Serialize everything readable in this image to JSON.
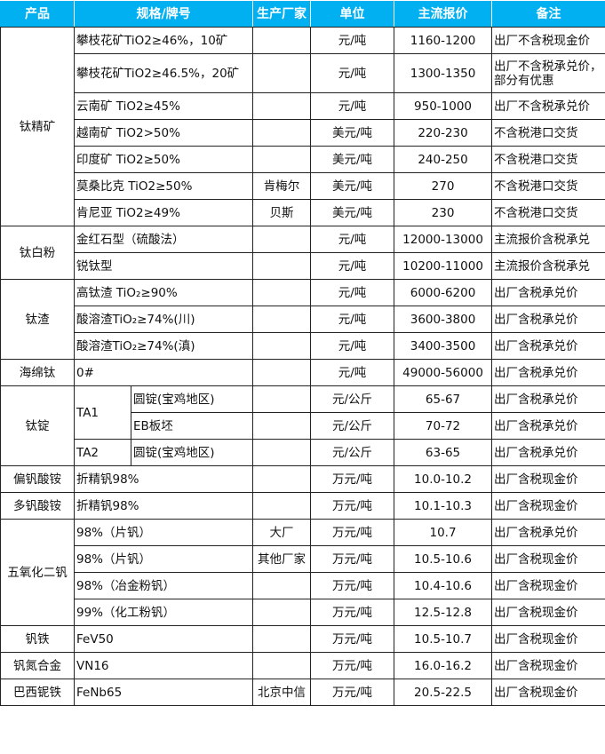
{
  "header": {
    "product": "产品",
    "spec": "规格/牌号",
    "maker": "生产厂家",
    "unit": "单位",
    "price": "主流报价",
    "note": "备注"
  },
  "colors": {
    "header_bg": "#00b0f0",
    "header_text": "#ffffff"
  },
  "groups": [
    {
      "product": "钛精矿",
      "rows": [
        {
          "spec": "攀枝花矿TiO2≥46%，10矿",
          "maker": "",
          "unit": "元/吨",
          "price": "1160-1200",
          "note": "出厂不含税现金价"
        },
        {
          "spec": "攀枝花矿TiO2≥46.5%，20矿",
          "maker": "",
          "unit": "元/吨",
          "price": "1300-1350",
          "note": "出厂不含税承兑价，部分有优惠"
        },
        {
          "spec": "云南矿 TiO2≥45%",
          "maker": "",
          "unit": "元/吨",
          "price": "950-1000",
          "note": "出厂不含税承兑价"
        },
        {
          "spec": "越南矿 TiO2>50%",
          "maker": "",
          "unit": "美元/吨",
          "price": "220-230",
          "note": "不含税港口交货"
        },
        {
          "spec": "印度矿 TiO2≥50%",
          "maker": "",
          "unit": "美元/吨",
          "price": "240-250",
          "note": "不含税港口交货"
        },
        {
          "spec": "莫桑比克 TiO2≥50%",
          "maker": "肯梅尔",
          "unit": "美元/吨",
          "price": "270",
          "note": "不含税港口交货"
        },
        {
          "spec": "肯尼亚 TiO2≥49%",
          "maker": "贝斯",
          "unit": "美元/吨",
          "price": "230",
          "note": "不含税港口交货"
        }
      ]
    },
    {
      "product": "钛白粉",
      "rows": [
        {
          "spec": "金红石型（硫酸法）",
          "maker": "",
          "unit": "元/吨",
          "price": "12000-13000",
          "note": "主流报价含税承兑"
        },
        {
          "spec": "锐钛型",
          "maker": "",
          "unit": "元/吨",
          "price": "10200-11000",
          "note": "主流报价含税承兑"
        }
      ]
    },
    {
      "product": "钛渣",
      "rows": [
        {
          "spec": "高钛渣 TiO₂≥90%",
          "maker": "",
          "unit": "元/吨",
          "price": "6000-6200",
          "note": "出厂含税承兑价"
        },
        {
          "spec": "酸溶渣TiO₂≥74%(川)",
          "maker": "",
          "unit": "元/吨",
          "price": "3600-3800",
          "note": "出厂含税承兑价"
        },
        {
          "spec": "酸溶渣TiO₂≥74%(滇)",
          "maker": "",
          "unit": "元/吨",
          "price": "3400-3500",
          "note": "出厂含税承兑价"
        }
      ]
    },
    {
      "product": "海绵钛",
      "rows": [
        {
          "spec": "0#",
          "maker": "",
          "unit": "元/吨",
          "price": "49000-56000",
          "note": "出厂含税承兑价"
        }
      ]
    },
    {
      "product": "钛锭",
      "sub": true,
      "rows": [
        {
          "grade": "TA1",
          "spec": "圆锭(宝鸡地区)",
          "unit": "元/公斤",
          "price": "65-67",
          "note": "出厂含税承兑价"
        },
        {
          "grade": "",
          "spec": "EB板坯",
          "unit": "元/公斤",
          "price": "70-72",
          "note": "出厂含税承兑价"
        },
        {
          "grade": "TA2",
          "spec": "圆锭(宝鸡地区)",
          "unit": "元/公斤",
          "price": "63-65",
          "note": "出厂含税承兑价"
        }
      ]
    },
    {
      "product": "偏钒酸铵",
      "rows": [
        {
          "spec": "折精钒98%",
          "maker": "",
          "unit": "万元/吨",
          "price": "10.0-10.2",
          "note": "出厂含税现金价"
        }
      ]
    },
    {
      "product": "多钒酸铵",
      "rows": [
        {
          "spec": "折精钒98%",
          "maker": "",
          "unit": "万元/吨",
          "price": "10.1-10.3",
          "note": "出厂含税现金价"
        }
      ]
    },
    {
      "product": "五氧化二钒",
      "rows": [
        {
          "spec": "98%（片钒）",
          "maker": "大厂",
          "unit": "万元/吨",
          "price": "10.7",
          "note": "出厂含税承兑价"
        },
        {
          "spec": "98%（片钒）",
          "maker": "其他厂家",
          "unit": "万元/吨",
          "price": "10.5-10.6",
          "note": "出厂含税现金价"
        },
        {
          "spec": "98%（冶金粉钒）",
          "maker": "",
          "unit": "万元/吨",
          "price": "10.4-10.6",
          "note": "出厂含税现金价"
        },
        {
          "spec": "99%（化工粉钒）",
          "maker": "",
          "unit": "万元/吨",
          "price": "12.5-12.8",
          "note": "出厂含税现金价"
        }
      ]
    },
    {
      "product": "钒铁",
      "rows": [
        {
          "spec": "FeV50",
          "maker": "",
          "unit": "万元/吨",
          "price": "10.5-10.7",
          "note": "出厂含税现金价"
        }
      ]
    },
    {
      "product": "钒氮合金",
      "rows": [
        {
          "spec": "VN16",
          "maker": "",
          "unit": "万元/吨",
          "price": "16.0-16.2",
          "note": "出厂含税现金价"
        }
      ]
    },
    {
      "product": "巴西铌铁",
      "rows": [
        {
          "spec": "FeNb65",
          "maker": "北京中信",
          "unit": "万元/吨",
          "price": "20.5-22.5",
          "note": "出厂含税现金价"
        }
      ]
    }
  ]
}
